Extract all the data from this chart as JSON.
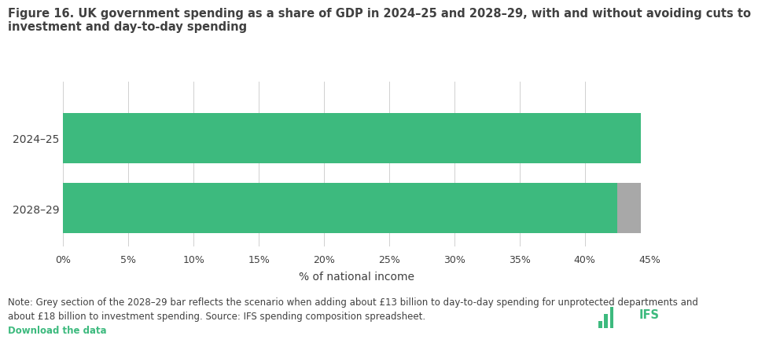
{
  "title_line1": "Figure 16. UK government spending as a share of GDP in 2024–25 and 2028–29, with and without avoiding cuts to",
  "title_line2": "investment and day-to-day spending",
  "categories": [
    "2024–25",
    "2028–29"
  ],
  "green_values": [
    44.3,
    42.5
  ],
  "grey_values": [
    0.0,
    1.8
  ],
  "green_color": "#3dba7e",
  "grey_color": "#a8a8a8",
  "background_color": "#ffffff",
  "xlabel": "% of national income",
  "xlim": [
    0,
    45
  ],
  "xtick_step": 5,
  "note_line1": "Note: Grey section of the 2028–29 bar reflects the scenario when adding about £13 billion to day-to-day spending for unprotected departments and",
  "note_line2": "about £18 billion to investment spending. Source: IFS spending composition spreadsheet.",
  "download_text": "Download the data",
  "title_fontsize": 10.5,
  "label_fontsize": 10,
  "note_fontsize": 8.5,
  "tick_fontsize": 9,
  "xlabel_fontsize": 10,
  "fig_width": 8.48,
  "fig_height": 4.24,
  "bar_height": 0.72,
  "title_color": "#404040",
  "tick_color": "#404040",
  "note_color": "#404040",
  "grid_color": "#d0d0d0",
  "ifs_color": "#3dba7e"
}
